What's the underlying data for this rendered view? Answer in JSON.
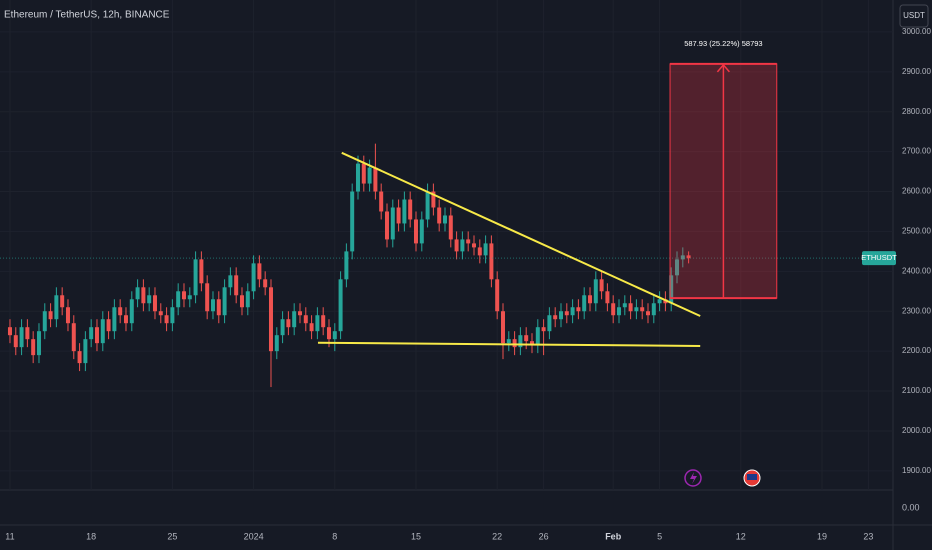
{
  "chart_data": {
    "type": "candlestick",
    "title": "Ethereum / TetherUS, 12h, BINANCE",
    "currency_button": "USDT",
    "symbol_tag": "ETHUSDT",
    "lower_pane_label": "0.00",
    "colors": {
      "up": "#26a69a",
      "down": "#ef5350",
      "trendline": "#f7e948",
      "measure": "#f23645"
    },
    "xlim": [
      -1.72,
      152.24
    ],
    "ylim": [
      1852,
      3080
    ],
    "yticks": [
      {
        "value": 1900,
        "label": "1900.00"
      },
      {
        "value": 2000,
        "label": "2000.00"
      },
      {
        "value": 2100,
        "label": "2100.00"
      },
      {
        "value": 2200,
        "label": "2200.00"
      },
      {
        "value": 2300,
        "label": "2300.00"
      },
      {
        "value": 2400,
        "label": "2400.00"
      },
      {
        "value": 2500,
        "label": "2500.00"
      },
      {
        "value": 2600,
        "label": "2600.00"
      },
      {
        "value": 2700,
        "label": "2700.00"
      },
      {
        "value": 2800,
        "label": "2800.00"
      },
      {
        "value": 2900,
        "label": "2900.00"
      },
      {
        "value": 3000,
        "label": "3000.00"
      }
    ],
    "xticks": [
      {
        "value": 0,
        "label": "11"
      },
      {
        "value": 14,
        "label": "18"
      },
      {
        "value": 28,
        "label": "25"
      },
      {
        "value": 42,
        "label": "2024"
      },
      {
        "value": 56,
        "label": "8"
      },
      {
        "value": 70,
        "label": "15"
      },
      {
        "value": 84,
        "label": "22"
      },
      {
        "value": 92,
        "label": "26"
      },
      {
        "value": 104,
        "label": "Feb"
      },
      {
        "value": 112,
        "label": "5"
      },
      {
        "value": 126,
        "label": "12"
      },
      {
        "value": 140,
        "label": "19"
      },
      {
        "value": 148,
        "label": "23"
      }
    ],
    "x": [
      0,
      1,
      2,
      3,
      4,
      5,
      6,
      7,
      8,
      9,
      10,
      11,
      12,
      13,
      14,
      15,
      16,
      17,
      18,
      19,
      20,
      21,
      22,
      23,
      24,
      25,
      26,
      27,
      28,
      29,
      30,
      31,
      32,
      33,
      34,
      35,
      36,
      37,
      38,
      39,
      40,
      41,
      42,
      43,
      44,
      45,
      46,
      47,
      48,
      49,
      50,
      51,
      52,
      53,
      54,
      55,
      56,
      57,
      58,
      59,
      60,
      61,
      62,
      63,
      64,
      65,
      66,
      67,
      68,
      69,
      70,
      71,
      72,
      73,
      74,
      75,
      76,
      77,
      78,
      79,
      80,
      81,
      82,
      83,
      84,
      85,
      86,
      87,
      88,
      89,
      90,
      91,
      92,
      93,
      94,
      95,
      96,
      97,
      98,
      99,
      100,
      101,
      102,
      103,
      104,
      105,
      106,
      107,
      108,
      109,
      110,
      111,
      112,
      113,
      114,
      115,
      116,
      117
    ],
    "open": [
      2260,
      2240,
      2210,
      2260,
      2230,
      2190,
      2250,
      2300,
      2280,
      2340,
      2310,
      2270,
      2200,
      2170,
      2230,
      2260,
      2220,
      2280,
      2250,
      2310,
      2290,
      2270,
      2330,
      2360,
      2320,
      2340,
      2300,
      2290,
      2270,
      2310,
      2350,
      2330,
      2340,
      2430,
      2370,
      2300,
      2330,
      2290,
      2360,
      2390,
      2340,
      2310,
      2350,
      2420,
      2380,
      2360,
      2200,
      2240,
      2280,
      2260,
      2300,
      2290,
      2270,
      2250,
      2290,
      2260,
      2230,
      2250,
      2380,
      2450,
      2600,
      2670,
      2620,
      2660,
      2600,
      2550,
      2480,
      2560,
      2520,
      2580,
      2530,
      2470,
      2530,
      2600,
      2560,
      2520,
      2540,
      2480,
      2450,
      2480,
      2470,
      2460,
      2440,
      2470,
      2380,
      2300,
      2220,
      2230,
      2210,
      2240,
      2225,
      2215,
      2260,
      2250,
      2290,
      2280,
      2300,
      2290,
      2310,
      2300,
      2340,
      2320,
      2380,
      2350,
      2320,
      2290,
      2310,
      2320,
      2300,
      2310,
      2300,
      2290,
      2320,
      2330,
      2320,
      2390,
      2430,
      2440
    ],
    "high": [
      2280,
      2260,
      2280,
      2280,
      2250,
      2270,
      2320,
      2320,
      2360,
      2360,
      2330,
      2290,
      2220,
      2250,
      2280,
      2280,
      2300,
      2300,
      2330,
      2330,
      2310,
      2350,
      2380,
      2380,
      2360,
      2360,
      2320,
      2310,
      2330,
      2370,
      2370,
      2360,
      2450,
      2450,
      2390,
      2350,
      2350,
      2380,
      2410,
      2410,
      2360,
      2370,
      2440,
      2440,
      2400,
      2380,
      2260,
      2300,
      2300,
      2320,
      2320,
      2310,
      2290,
      2310,
      2310,
      2280,
      2270,
      2400,
      2470,
      2620,
      2690,
      2690,
      2680,
      2720,
      2620,
      2570,
      2580,
      2580,
      2600,
      2600,
      2550,
      2550,
      2620,
      2620,
      2580,
      2560,
      2560,
      2500,
      2500,
      2500,
      2490,
      2480,
      2490,
      2490,
      2400,
      2320,
      2250,
      2250,
      2260,
      2260,
      2245,
      2280,
      2280,
      2310,
      2310,
      2320,
      2320,
      2330,
      2330,
      2360,
      2360,
      2400,
      2400,
      2370,
      2340,
      2330,
      2340,
      2340,
      2330,
      2330,
      2320,
      2340,
      2350,
      2350,
      2410,
      2450,
      2460,
      2450
    ],
    "low": [
      2220,
      2190,
      2190,
      2210,
      2170,
      2170,
      2230,
      2260,
      2260,
      2290,
      2250,
      2180,
      2150,
      2150,
      2210,
      2200,
      2200,
      2230,
      2230,
      2270,
      2250,
      2250,
      2310,
      2300,
      2300,
      2280,
      2270,
      2250,
      2250,
      2290,
      2310,
      2310,
      2320,
      2350,
      2280,
      2280,
      2270,
      2270,
      2340,
      2320,
      2290,
      2290,
      2330,
      2360,
      2340,
      2110,
      2180,
      2220,
      2240,
      2240,
      2270,
      2250,
      2230,
      2230,
      2240,
      2210,
      2200,
      2230,
      2360,
      2430,
      2580,
      2600,
      2600,
      2580,
      2530,
      2460,
      2460,
      2500,
      2500,
      2510,
      2450,
      2450,
      2510,
      2540,
      2500,
      2500,
      2460,
      2430,
      2430,
      2450,
      2440,
      2420,
      2420,
      2360,
      2280,
      2180,
      2200,
      2190,
      2190,
      2205,
      2195,
      2195,
      2190,
      2230,
      2260,
      2260,
      2270,
      2270,
      2280,
      2280,
      2300,
      2300,
      2330,
      2300,
      2270,
      2270,
      2290,
      2280,
      2280,
      2280,
      2270,
      2270,
      2300,
      2300,
      2300,
      2370,
      2410,
      2420
    ],
    "close": [
      2240,
      2210,
      2260,
      2230,
      2190,
      2250,
      2300,
      2280,
      2340,
      2310,
      2270,
      2200,
      2170,
      2230,
      2260,
      2220,
      2280,
      2250,
      2310,
      2290,
      2270,
      2330,
      2360,
      2320,
      2340,
      2300,
      2290,
      2270,
      2310,
      2350,
      2330,
      2340,
      2430,
      2370,
      2300,
      2330,
      2290,
      2360,
      2390,
      2340,
      2310,
      2350,
      2420,
      2380,
      2360,
      2200,
      2240,
      2280,
      2260,
      2300,
      2290,
      2270,
      2250,
      2290,
      2260,
      2230,
      2250,
      2380,
      2450,
      2600,
      2670,
      2620,
      2660,
      2600,
      2550,
      2480,
      2560,
      2520,
      2580,
      2530,
      2470,
      2530,
      2600,
      2560,
      2520,
      2540,
      2480,
      2450,
      2480,
      2470,
      2460,
      2440,
      2470,
      2380,
      2300,
      2220,
      2230,
      2210,
      2240,
      2225,
      2215,
      2260,
      2250,
      2290,
      2280,
      2300,
      2290,
      2310,
      2300,
      2340,
      2320,
      2380,
      2350,
      2320,
      2290,
      2310,
      2320,
      2300,
      2310,
      2300,
      2290,
      2320,
      2330,
      2320,
      2390,
      2430,
      2440,
      2433
    ],
    "trendlines": [
      {
        "x": [
          57.2,
          119
        ],
        "y": [
          2697,
          2288
        ]
      },
      {
        "x": [
          53.1,
          119
        ],
        "y": [
          2221,
          2213
        ]
      }
    ],
    "measure": {
      "x": [
        113.8,
        132.2
      ],
      "y": [
        2333,
        2920
      ],
      "label": "587.93 (25.22%) 58793"
    }
  }
}
